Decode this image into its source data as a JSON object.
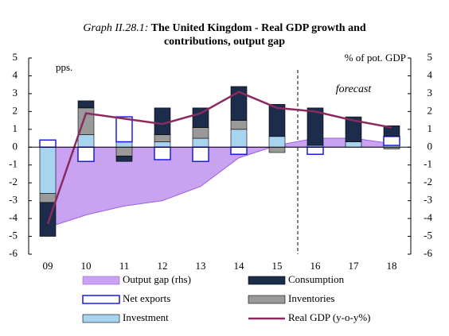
{
  "chart_data": {
    "type": "bar",
    "title_prefix": "Graph II.28.1:",
    "title": "The United Kingdom - Real GDP growth and contributions, output gap",
    "y_label": "pps.",
    "y2_label": "% of pot. GDP",
    "annotation": "forecast",
    "categories": [
      "09",
      "10",
      "11",
      "12",
      "13",
      "14",
      "15",
      "16",
      "17",
      "18"
    ],
    "ylim": [
      -6,
      5
    ],
    "yticks": [
      -6,
      -5,
      -4,
      -3,
      -2,
      -1,
      0,
      1,
      2,
      3,
      4,
      5
    ],
    "y2lim": [
      -6,
      5
    ],
    "y2ticks": [
      -6,
      -5,
      -4,
      -3,
      -2,
      -1,
      0,
      1,
      2,
      3,
      4,
      5
    ],
    "series": [
      {
        "name": "Output gap (rhs)",
        "type": "area",
        "axis": "y2",
        "color": "#c9a3f2",
        "values": [
          -4.5,
          -3.8,
          -3.3,
          -3.0,
          -2.2,
          -0.6,
          0.1,
          0.5,
          0.5,
          0.2
        ]
      },
      {
        "name": "Consumption",
        "type": "bar",
        "color": "#1b2d4a",
        "values": [
          -1.9,
          0.4,
          -0.3,
          1.5,
          1.1,
          1.9,
          1.8,
          2.1,
          1.4,
          0.6
        ]
      },
      {
        "name": "Net exports",
        "type": "bar",
        "color": "#ffffff",
        "values": [
          0.4,
          -0.8,
          1.4,
          -0.7,
          -0.8,
          -0.4,
          0,
          -0.4,
          0,
          0.5
        ]
      },
      {
        "name": "Inventories",
        "type": "bar",
        "color": "#9a9a9a",
        "values": [
          -0.5,
          1.5,
          -0.5,
          0.4,
          0.6,
          0.5,
          -0.3,
          0,
          0,
          -0.1
        ]
      },
      {
        "name": "Investment",
        "type": "bar",
        "color": "#a9d4f0",
        "values": [
          -2.6,
          0.7,
          0.3,
          0.3,
          0.5,
          1.0,
          0.6,
          0.1,
          0.3,
          0.1
        ]
      },
      {
        "name": "Real GDP (y-o-y%)",
        "type": "line",
        "color": "#8b2a5c",
        "values": [
          -4.3,
          1.9,
          1.6,
          1.3,
          1.9,
          3.1,
          2.2,
          2.0,
          1.5,
          1.1
        ]
      }
    ]
  }
}
